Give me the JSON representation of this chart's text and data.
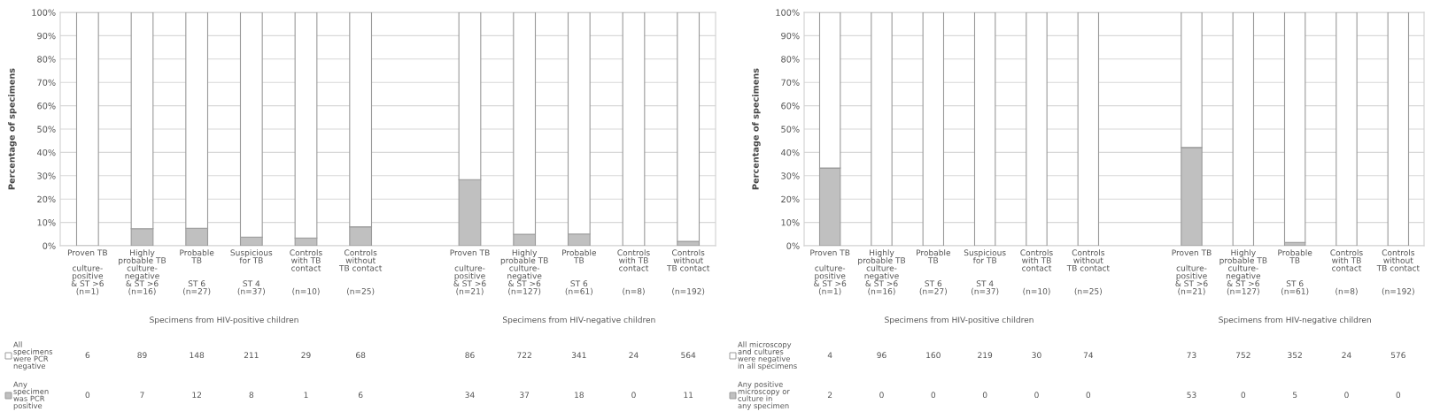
{
  "chart_data": [
    {
      "type": "bar",
      "stacked": true,
      "ylabel": "Percentage of specimens",
      "grid": "y",
      "legend": "bottom left",
      "categories": [
        "Proven TB\n\nculture-\npositive\n& ST >6\n(n=1)",
        "Highly\nprobable TB\nculture-\nnegative\n& ST >6\n(n=16)",
        "Probable\nTB\n\n\nST 6\n(n=27)",
        "Suspicious\nfor TB\n\n\nST 4\n(n=37)",
        "Controls\nwith TB\ncontact\n\n\n(n=10)",
        "Controls\nwithout\nTB contact\n\n\n(n=25)",
        null,
        "Proven TB\n\nculture-\npositive\n& ST >6\n(n=21)",
        "Highly\nprobable TB\nculture-\nnegative\n& ST >6\n(n=127)",
        "Probable\nTB\n\n\nST 6\n(n=61)",
        "Controls\nwith TB\ncontact\n\n\n(n=8)",
        "Controls\nwithout\nTB contact\n\n\n(n=192)"
      ],
      "ylim": [
        0,
        100
      ],
      "yticks": [
        {
          "value": 0,
          "label": "0%"
        },
        {
          "value": 10,
          "label": "10%"
        },
        {
          "value": 20,
          "label": "20%"
        },
        {
          "value": 30,
          "label": "30%"
        },
        {
          "value": 40,
          "label": "40%"
        },
        {
          "value": 50,
          "label": "50%"
        },
        {
          "value": 60,
          "label": "60%"
        },
        {
          "value": 70,
          "label": "70%"
        },
        {
          "value": 80,
          "label": "80%"
        },
        {
          "value": 90,
          "label": "90%"
        },
        {
          "value": 100,
          "label": "100%"
        }
      ],
      "series": [
        {
          "name": "Any\nspecimen\nwas PCR\npositive",
          "color": "#c0c0c0",
          "values": [
            0,
            7.3,
            7.5,
            3.7,
            3.3,
            8.1,
            null,
            28.3,
            4.9,
            5.0,
            0,
            1.9
          ]
        },
        {
          "name": "All\nspecimens\nwere PCR\nnegative",
          "color": "#ffffff",
          "values": [
            100,
            92.7,
            92.5,
            96.3,
            96.7,
            91.9,
            null,
            71.7,
            95.1,
            95.0,
            100,
            98.1
          ]
        }
      ],
      "annotations": [
        "Specimens from HIV-positive children",
        "Specimens from HIV-negative children"
      ]
    },
    {
      "type": "bar",
      "stacked": true,
      "ylabel": "Percentage of specimens",
      "grid": "y",
      "legend": "bottom left",
      "categories": [
        "Proven TB\n\nculture-\npositive\n& ST >6\n(n=1)",
        "Highly\nprobable TB\nculture-\nnegative\n& ST >6\n(n=16)",
        "Probable\nTB\n\n\nST 6\n(n=27)",
        "Suspicious\nfor TB\n\n\nST 4\n(n=37)",
        "Controls\nwith TB\ncontact\n\n\n(n=10)",
        "Controls\nwithout\nTB contact\n\n\n(n=25)",
        null,
        "Proven TB\n\nculture-\npositive\n& ST >6\n(n=21)",
        "Highly\nprobable TB\nculture-\nnegative\n& ST >6\n(n=127)",
        "Probable\nTB\n\n\nST 6\n(n=61)",
        "Controls\nwith TB\ncontact\n\n\n(n=8)",
        "Controls\nwithout\nTB contact\n\n\n(n=192)"
      ],
      "ylim": [
        0,
        100
      ],
      "yticks": [
        {
          "value": 0,
          "label": "0%"
        },
        {
          "value": 10,
          "label": "10%"
        },
        {
          "value": 20,
          "label": "20%"
        },
        {
          "value": 30,
          "label": "30%"
        },
        {
          "value": 40,
          "label": "40%"
        },
        {
          "value": 50,
          "label": "50%"
        },
        {
          "value": 60,
          "label": "60%"
        },
        {
          "value": 70,
          "label": "70%"
        },
        {
          "value": 80,
          "label": "80%"
        },
        {
          "value": 90,
          "label": "90%"
        },
        {
          "value": 100,
          "label": "100%"
        }
      ],
      "series": [
        {
          "name": "Any positive\nmicroscopy or\nculture in\nany specimen",
          "color": "#c0c0c0",
          "values": [
            33.3,
            0,
            0,
            0,
            0,
            0,
            null,
            42.1,
            0,
            1.4,
            0,
            0
          ]
        },
        {
          "name": "All microscopy\nand cultures\nwere negative\nin all specimens",
          "color": "#ffffff",
          "values": [
            66.7,
            100,
            100,
            100,
            100,
            100,
            null,
            57.9,
            100,
            98.6,
            100,
            100
          ]
        }
      ],
      "annotations": [
        "Specimens from HIV-positive children",
        "Specimens from HIV-negative children"
      ]
    },
    {
      "type": "heatmap",
      "data_labels": true,
      "categories": [
        null,
        null,
        null,
        null,
        null,
        null,
        null,
        null,
        null,
        null,
        null,
        null
      ],
      "y_categories": [
        null,
        null
      ],
      "cells": [
        [
          6,
          89,
          148,
          211,
          29,
          68,
          null,
          86,
          722,
          341,
          24,
          564
        ],
        [
          0,
          7,
          12,
          8,
          1,
          6,
          null,
          34,
          37,
          18,
          0,
          11
        ]
      ]
    },
    {
      "type": "heatmap",
      "data_labels": true,
      "categories": [
        null,
        null,
        null,
        null,
        null,
        null,
        null,
        null,
        null,
        null,
        null,
        null
      ],
      "y_categories": [
        null,
        null
      ],
      "cells": [
        [
          4,
          96,
          160,
          219,
          30,
          74,
          null,
          73,
          752,
          352,
          24,
          576
        ],
        [
          2,
          0,
          0,
          0,
          0,
          0,
          null,
          53,
          0,
          5,
          0,
          0
        ]
      ]
    }
  ]
}
